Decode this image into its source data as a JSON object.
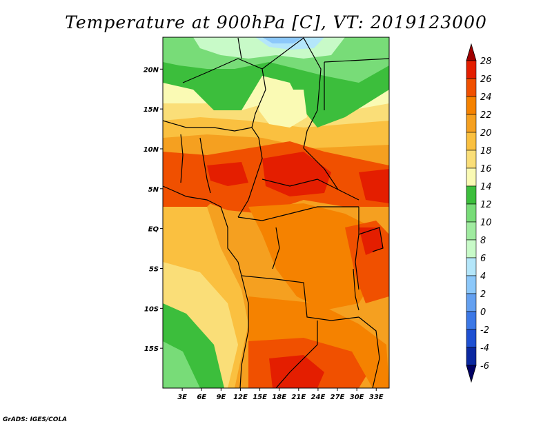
{
  "title": "Temperature at 900hPa [C], VT: 2019123000",
  "credit": "GrADS: IGES/COLA",
  "map": {
    "lon_range": [
      0,
      35
    ],
    "lat_range": [
      -20,
      24
    ],
    "y_ticks": [
      {
        "label": "20N",
        "lat": 20
      },
      {
        "label": "15N",
        "lat": 15
      },
      {
        "label": "10N",
        "lat": 10
      },
      {
        "label": "5N",
        "lat": 5
      },
      {
        "label": "EQ",
        "lat": 0
      },
      {
        "label": "5S",
        "lat": -5
      },
      {
        "label": "10S",
        "lat": -10
      },
      {
        "label": "15S",
        "lat": -15
      }
    ],
    "x_ticks": [
      {
        "label": "3E",
        "lon": 3
      },
      {
        "label": "6E",
        "lon": 6
      },
      {
        "label": "9E",
        "lon": 9
      },
      {
        "label": "12E",
        "lon": 12
      },
      {
        "label": "15E",
        "lon": 15
      },
      {
        "label": "18E",
        "lon": 18
      },
      {
        "label": "21E",
        "lon": 21
      },
      {
        "label": "24E",
        "lon": 24
      },
      {
        "label": "27E",
        "lon": 27
      },
      {
        "label": "30E",
        "lon": 30
      },
      {
        "label": "33E",
        "lon": 33
      }
    ]
  },
  "colorbar": {
    "levels": [
      "28",
      "26",
      "24",
      "22",
      "20",
      "18",
      "16",
      "14",
      "12",
      "10",
      "8",
      "6",
      "4",
      "2",
      "0",
      "-2",
      "-4",
      "-6"
    ],
    "colors": [
      "#a00000",
      "#e41e00",
      "#f05000",
      "#f58200",
      "#f5a020",
      "#fac040",
      "#fade78",
      "#fafab4",
      "#3cbe3c",
      "#78dc78",
      "#a0eba0",
      "#c8fac8",
      "#b4e6fa",
      "#8cc8fa",
      "#64a0f0",
      "#3c78e6",
      "#1e50d2",
      "#0a28a0",
      "#000064"
    ]
  }
}
